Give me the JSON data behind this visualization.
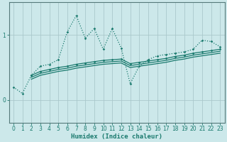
{
  "xlabel": "Humidex (Indice chaleur)",
  "bg_color": "#cce8ea",
  "grid_color": "#aac8cc",
  "line_color": "#1a7a6e",
  "xlim": [
    -0.5,
    23.5
  ],
  "ylim": [
    -0.35,
    1.5
  ],
  "yticks": [
    0,
    1
  ],
  "xticks": [
    0,
    1,
    2,
    3,
    4,
    5,
    6,
    7,
    8,
    9,
    10,
    11,
    12,
    13,
    14,
    15,
    16,
    17,
    18,
    19,
    20,
    21,
    22,
    23
  ],
  "series1_x": [
    0,
    1,
    2,
    3,
    4,
    5,
    6,
    7,
    8,
    9,
    10,
    11,
    12,
    13,
    14,
    15,
    16,
    17,
    18,
    19,
    20,
    21,
    22,
    23
  ],
  "series1_y": [
    0.2,
    0.1,
    0.38,
    0.52,
    0.55,
    0.62,
    1.05,
    1.3,
    0.95,
    1.1,
    0.78,
    1.1,
    0.8,
    0.25,
    0.52,
    0.62,
    0.68,
    0.7,
    0.72,
    0.74,
    0.78,
    0.92,
    0.9,
    0.82
  ],
  "series2_x": [
    2,
    3,
    4,
    5,
    6,
    7,
    8,
    9,
    10,
    11,
    12,
    13,
    14,
    15,
    16,
    17,
    18,
    19,
    20,
    21,
    22,
    23
  ],
  "series2_y": [
    0.38,
    0.44,
    0.47,
    0.5,
    0.52,
    0.55,
    0.57,
    0.59,
    0.61,
    0.62,
    0.63,
    0.56,
    0.58,
    0.6,
    0.62,
    0.64,
    0.67,
    0.69,
    0.72,
    0.74,
    0.76,
    0.78
  ],
  "series3_x": [
    2,
    3,
    4,
    5,
    6,
    7,
    8,
    9,
    10,
    11,
    12,
    13,
    14,
    15,
    16,
    17,
    18,
    19,
    20,
    21,
    22,
    23
  ],
  "series3_y": [
    0.35,
    0.41,
    0.44,
    0.47,
    0.49,
    0.52,
    0.54,
    0.56,
    0.58,
    0.59,
    0.6,
    0.53,
    0.55,
    0.57,
    0.59,
    0.61,
    0.64,
    0.66,
    0.69,
    0.71,
    0.73,
    0.75
  ],
  "series4_x": [
    2,
    3,
    4,
    5,
    6,
    7,
    8,
    9,
    10,
    11,
    12,
    13,
    14,
    15,
    16,
    17,
    18,
    19,
    20,
    21,
    22,
    23
  ],
  "series4_y": [
    0.32,
    0.38,
    0.41,
    0.44,
    0.46,
    0.49,
    0.51,
    0.53,
    0.55,
    0.56,
    0.57,
    0.5,
    0.52,
    0.54,
    0.56,
    0.58,
    0.61,
    0.63,
    0.66,
    0.68,
    0.7,
    0.72
  ]
}
